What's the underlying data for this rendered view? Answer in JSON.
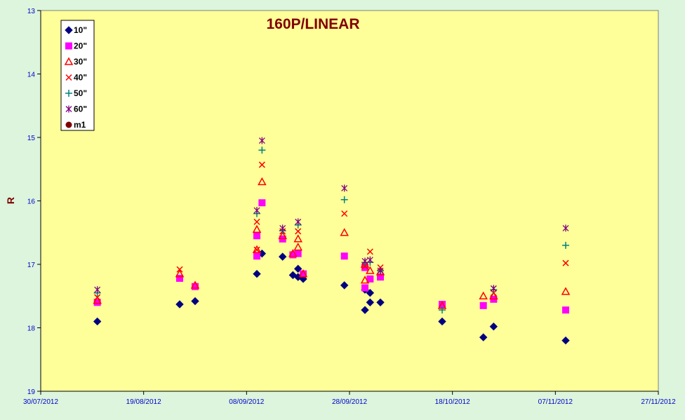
{
  "chart_data": {
    "type": "scatter",
    "title": "160P/LINEAR",
    "xlabel": "",
    "ylabel": "R",
    "x_axis": {
      "type": "date",
      "ticks": [
        "2012-07-30",
        "2012-08-19",
        "2012-09-08",
        "2012-09-28",
        "2012-10-18",
        "2012-11-07",
        "2012-11-27"
      ],
      "tick_labels": [
        "30/07/2012",
        "19/08/2012",
        "08/09/2012",
        "28/09/2012",
        "18/10/2012",
        "07/11/2012",
        "27/11/2012"
      ],
      "range": [
        "2012-07-30",
        "2012-11-27"
      ]
    },
    "y_axis": {
      "inverted": true,
      "range": [
        13,
        19
      ],
      "ticks": [
        13,
        14,
        15,
        16,
        17,
        18,
        19
      ],
      "tick_labels": [
        "13",
        "14",
        "15",
        "16",
        "17",
        "18",
        "19"
      ]
    },
    "grid": false,
    "legend_position": "top-left",
    "colors": {
      "plot_bg": "#ffff99",
      "page_bg": "#dcf5dc",
      "title": "#800000",
      "ticks": "#0000cc"
    },
    "series": [
      {
        "name": "10\"",
        "marker": "diamond",
        "color": "#000080",
        "points": [
          [
            "2012-08-10",
            17.9
          ],
          [
            "2012-08-26",
            17.63
          ],
          [
            "2012-08-29",
            17.58
          ],
          [
            "2012-09-10",
            17.15
          ],
          [
            "2012-09-11",
            16.83
          ],
          [
            "2012-09-15",
            16.88
          ],
          [
            "2012-09-17",
            17.17
          ],
          [
            "2012-09-18",
            17.2
          ],
          [
            "2012-09-18",
            17.07
          ],
          [
            "2012-09-19",
            17.23
          ],
          [
            "2012-09-27",
            17.33
          ],
          [
            "2012-10-01",
            17.72
          ],
          [
            "2012-10-01",
            17.4
          ],
          [
            "2012-10-02",
            17.6
          ],
          [
            "2012-10-02",
            17.45
          ],
          [
            "2012-10-04",
            17.6
          ],
          [
            "2012-10-16",
            17.9
          ],
          [
            "2012-10-24",
            18.15
          ],
          [
            "2012-10-26",
            17.98
          ],
          [
            "2012-11-09",
            18.2
          ]
        ]
      },
      {
        "name": "20\"",
        "marker": "square",
        "color": "#ff00ff",
        "points": [
          [
            "2012-08-10",
            17.6
          ],
          [
            "2012-08-26",
            17.22
          ],
          [
            "2012-08-29",
            17.35
          ],
          [
            "2012-09-10",
            16.87
          ],
          [
            "2012-09-10",
            16.55
          ],
          [
            "2012-09-11",
            16.03
          ],
          [
            "2012-09-15",
            16.6
          ],
          [
            "2012-09-17",
            16.85
          ],
          [
            "2012-09-18",
            16.83
          ],
          [
            "2012-09-19",
            17.15
          ],
          [
            "2012-09-27",
            16.87
          ],
          [
            "2012-10-01",
            17.37
          ],
          [
            "2012-10-01",
            17.05
          ],
          [
            "2012-10-02",
            17.23
          ],
          [
            "2012-10-04",
            17.2
          ],
          [
            "2012-10-16",
            17.63
          ],
          [
            "2012-10-24",
            17.65
          ],
          [
            "2012-10-26",
            17.55
          ],
          [
            "2012-11-09",
            17.72
          ]
        ]
      },
      {
        "name": "30\"",
        "marker": "triangle",
        "color": "#ff0000",
        "points": [
          [
            "2012-08-10",
            17.57
          ],
          [
            "2012-08-26",
            17.15
          ],
          [
            "2012-08-29",
            17.33
          ],
          [
            "2012-09-10",
            16.77
          ],
          [
            "2012-09-10",
            16.45
          ],
          [
            "2012-09-11",
            15.7
          ],
          [
            "2012-09-15",
            16.55
          ],
          [
            "2012-09-17",
            16.83
          ],
          [
            "2012-09-18",
            16.6
          ],
          [
            "2012-09-18",
            16.73
          ],
          [
            "2012-09-19",
            17.15
          ],
          [
            "2012-09-27",
            16.5
          ],
          [
            "2012-10-01",
            17.0
          ],
          [
            "2012-10-01",
            17.25
          ],
          [
            "2012-10-02",
            17.1
          ],
          [
            "2012-10-04",
            17.12
          ],
          [
            "2012-10-16",
            17.65
          ],
          [
            "2012-10-24",
            17.5
          ],
          [
            "2012-10-26",
            17.5
          ],
          [
            "2012-11-09",
            17.43
          ]
        ]
      },
      {
        "name": "40\"",
        "marker": "x",
        "color": "#ff0000",
        "points": [
          [
            "2012-08-10",
            17.52
          ],
          [
            "2012-08-26",
            17.08
          ],
          [
            "2012-09-10",
            16.77
          ],
          [
            "2012-09-10",
            16.33
          ],
          [
            "2012-09-11",
            15.43
          ],
          [
            "2012-09-15",
            16.48
          ],
          [
            "2012-09-18",
            16.48
          ],
          [
            "2012-09-27",
            16.2
          ],
          [
            "2012-10-01",
            17.03
          ],
          [
            "2012-10-02",
            16.8
          ],
          [
            "2012-10-04",
            17.05
          ],
          [
            "2012-10-26",
            17.45
          ],
          [
            "2012-11-09",
            16.98
          ]
        ]
      },
      {
        "name": "50\"",
        "marker": "plus",
        "color": "#008080",
        "points": [
          [
            "2012-08-10",
            17.45
          ],
          [
            "2012-09-10",
            16.2
          ],
          [
            "2012-09-11",
            15.2
          ],
          [
            "2012-09-15",
            16.47
          ],
          [
            "2012-09-18",
            16.38
          ],
          [
            "2012-09-27",
            15.98
          ],
          [
            "2012-10-01",
            16.97
          ],
          [
            "2012-10-02",
            16.97
          ],
          [
            "2012-10-04",
            17.1
          ],
          [
            "2012-10-16",
            17.72
          ],
          [
            "2012-10-26",
            17.4
          ],
          [
            "2012-11-09",
            16.7
          ]
        ]
      },
      {
        "name": "60\"",
        "marker": "star",
        "color": "#800080",
        "points": [
          [
            "2012-08-10",
            17.4
          ],
          [
            "2012-09-10",
            16.15
          ],
          [
            "2012-09-11",
            15.05
          ],
          [
            "2012-09-15",
            16.43
          ],
          [
            "2012-09-18",
            16.33
          ],
          [
            "2012-09-27",
            15.8
          ],
          [
            "2012-10-01",
            16.95
          ],
          [
            "2012-10-02",
            16.93
          ],
          [
            "2012-10-04",
            17.1
          ],
          [
            "2012-10-26",
            17.38
          ],
          [
            "2012-11-09",
            16.43
          ]
        ]
      },
      {
        "name": "m1",
        "marker": "circle",
        "color": "#800000",
        "points": []
      }
    ]
  }
}
